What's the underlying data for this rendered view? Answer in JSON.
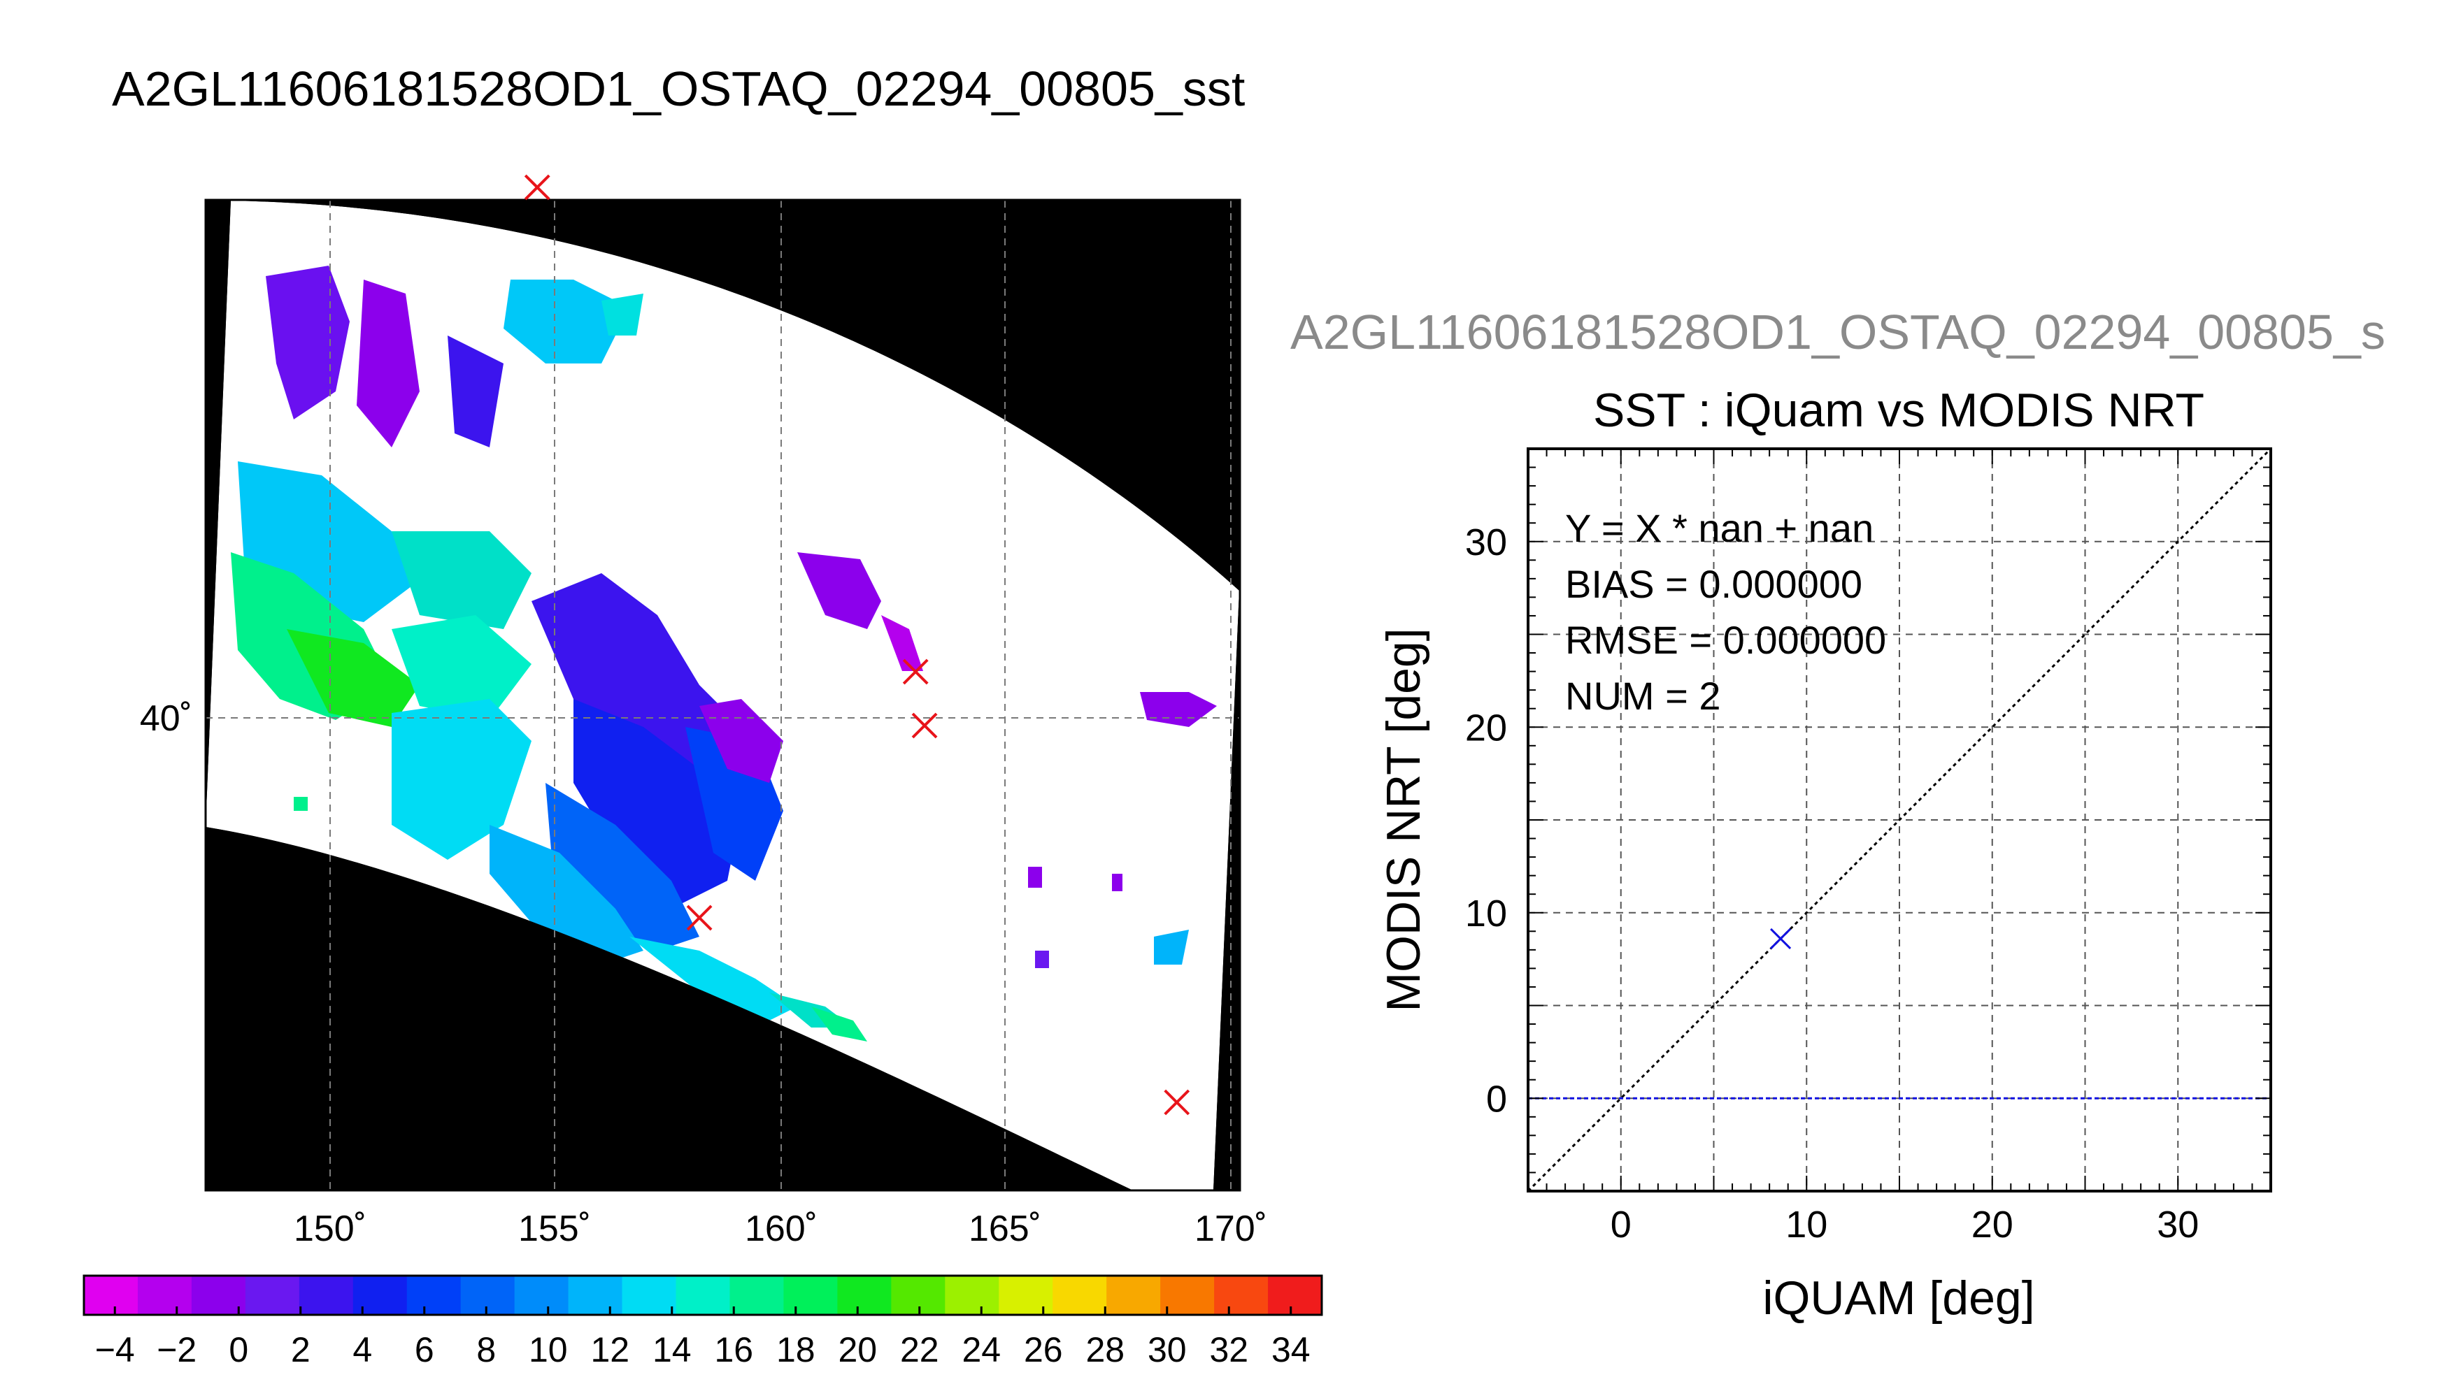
{
  "main_title": "A2GL11606181528OD1_OSTAQ_02294_00805_sst",
  "sub_title": "A2GL11606181528OD1_OSTAQ_02294_00805_s",
  "map": {
    "lon_ticks": [
      "150˚",
      "155˚",
      "160˚",
      "165˚",
      "170˚"
    ],
    "lat_ticks": [
      "40˚"
    ],
    "points": [
      {
        "lon": 154.6,
        "lat": 46.9
      },
      {
        "lon": 163.0,
        "lat": 40.6
      },
      {
        "lon": 163.2,
        "lat": 39.9
      },
      {
        "lon": 158.2,
        "lat": 37.4
      },
      {
        "lon": 168.8,
        "lat": 35.0
      }
    ],
    "marker_color": "#e8141a"
  },
  "colorbar": {
    "tick_labels": [
      "−4",
      "−2",
      "0",
      "2",
      "4",
      "6",
      "8",
      "10",
      "12",
      "14",
      "16",
      "18",
      "20",
      "22",
      "24",
      "26",
      "28",
      "30",
      "32",
      "34"
    ],
    "range": [
      -5,
      35
    ],
    "colors": [
      "#e000f0",
      "#b400ee",
      "#8c00ec",
      "#6a18f0",
      "#3c14ee",
      "#1020f0",
      "#0040f8",
      "#0064f8",
      "#008cfa",
      "#00b4fa",
      "#00dcf4",
      "#00f0c8",
      "#00f08c",
      "#00f05a",
      "#10e820",
      "#54e800",
      "#9cf000",
      "#d8f000",
      "#f8d800",
      "#f8a800",
      "#f87800",
      "#f84810",
      "#f01c1c"
    ]
  },
  "chart_data": {
    "type": "scatter",
    "title": "SST : iQuam vs MODIS NRT",
    "xlabel": "iQUAM [deg]",
    "ylabel": "MODIS NRT [deg]",
    "xlim": [
      -5,
      35
    ],
    "ylim": [
      -5,
      35
    ],
    "x_ticks": [
      "0",
      "10",
      "20",
      "30"
    ],
    "y_ticks": [
      "0",
      "10",
      "20",
      "30"
    ],
    "grid": true,
    "annotations": [
      "Y = X * nan + nan",
      "BIAS = 0.000000",
      "RMSE = 0.000000",
      "NUM = 2"
    ],
    "points": [
      {
        "x": 8.6,
        "y": 8.6
      }
    ],
    "one_to_one_line": true,
    "zero_line_y": 0,
    "marker_color": "#1010e0",
    "zero_line_color": "#1010e0"
  }
}
